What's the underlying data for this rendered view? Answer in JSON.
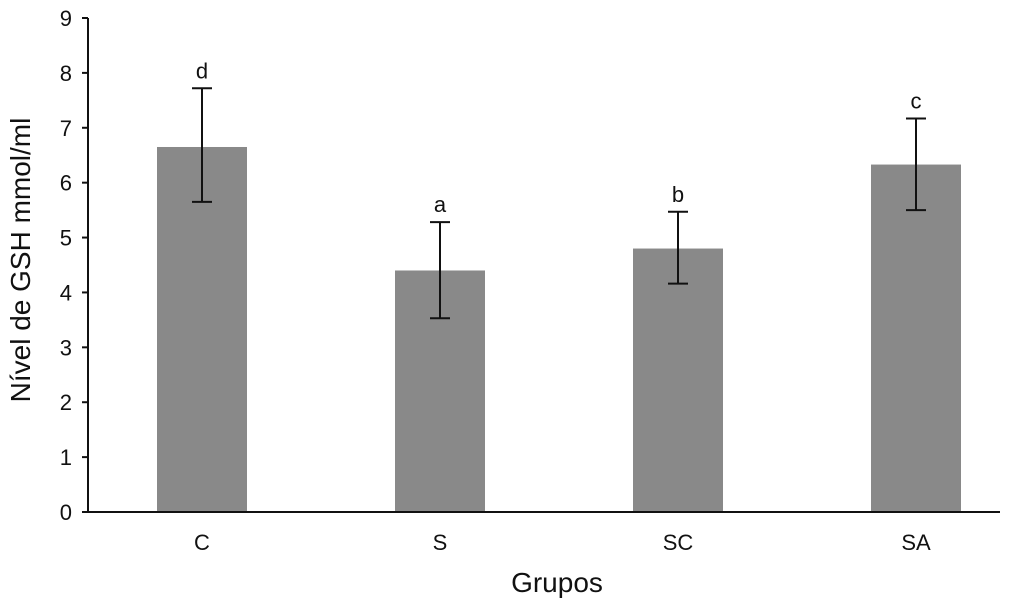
{
  "chart_data": {
    "type": "bar",
    "categories": [
      "C",
      "S",
      "SC",
      "SA"
    ],
    "values": [
      6.65,
      4.4,
      4.8,
      6.33
    ],
    "error_bars": {
      "upper": [
        7.72,
        5.28,
        5.47,
        7.17
      ],
      "lower": [
        5.65,
        3.53,
        4.16,
        5.5
      ]
    },
    "significance_labels": [
      "d",
      "a",
      "b",
      "c"
    ],
    "xlabel": "Grupos",
    "ylabel": "Nível de GSH mmol/ml",
    "ylim": [
      0,
      9
    ],
    "yticks": [
      "0",
      "1",
      "2",
      "3",
      "4",
      "5",
      "6",
      "7",
      "8",
      "9"
    ],
    "grid": false,
    "legend": "none",
    "bar_color": "#898989",
    "axis_color": "#111111"
  }
}
